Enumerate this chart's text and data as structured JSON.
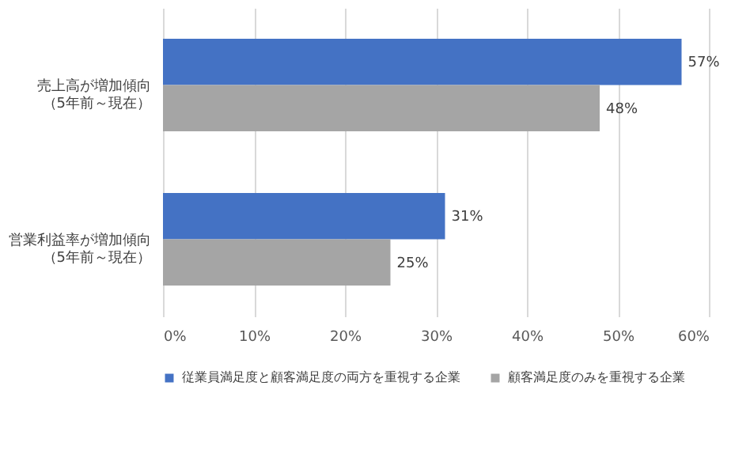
{
  "chart_data": {
    "type": "bar",
    "orientation": "horizontal",
    "categories": [
      "売上高が増加傾向（5年前～現在）",
      "営業利益率が増加傾向（5年前～現在）"
    ],
    "series": [
      {
        "name": "従業員満足度と顧客満足度の両方を重視する企業",
        "color": "#4472c4",
        "values": [
          57,
          31
        ],
        "value_labels": [
          "57%",
          "31%"
        ]
      },
      {
        "name": "顧客満足度のみを重視する企業",
        "color": "#a5a5a5",
        "values": [
          48,
          25
        ],
        "value_labels": [
          "48%",
          "25%"
        ]
      }
    ],
    "xlim": [
      0,
      60
    ],
    "xticks": [
      {
        "value": 0,
        "label": "0%"
      },
      {
        "value": 10,
        "label": "10%"
      },
      {
        "value": 20,
        "label": "20%"
      },
      {
        "value": 30,
        "label": "30%"
      },
      {
        "value": 40,
        "label": "40%"
      },
      {
        "value": 50,
        "label": "50%"
      },
      {
        "value": 60,
        "label": "60%"
      }
    ],
    "grid": "x",
    "legend": "bottom"
  }
}
